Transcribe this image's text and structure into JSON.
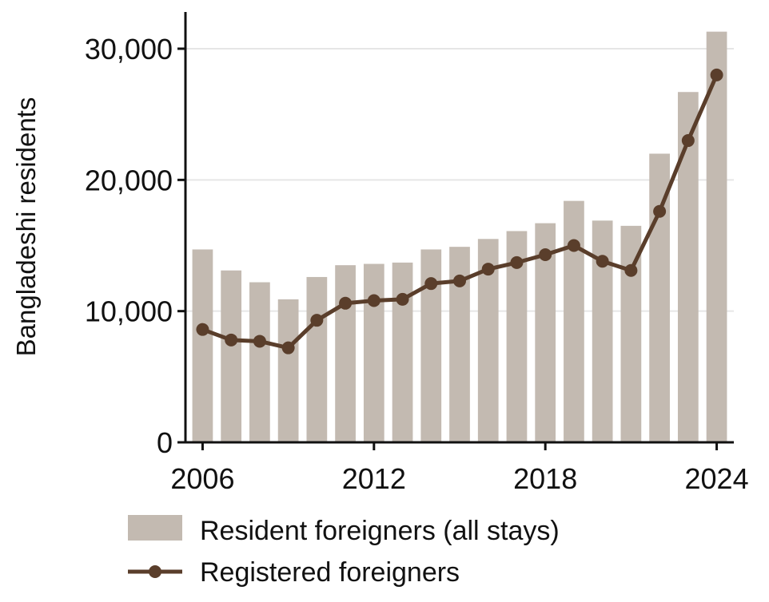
{
  "chart_data": {
    "type": "bar",
    "ylabel": "Bangladeshi residents",
    "xlabel": "",
    "ylim": [
      0,
      32800
    ],
    "xlim": [
      2005.4,
      2024.6
    ],
    "yticks": [
      0,
      10000,
      20000,
      30000
    ],
    "ytick_labels": [
      "0",
      "10,000",
      "20,000",
      "30,000"
    ],
    "xticks": [
      2006,
      2012,
      2018,
      2024
    ],
    "xtick_labels": [
      "2006",
      "2012",
      "2018",
      "2024"
    ],
    "grid": "horizontal",
    "legend_position": "bottom",
    "x": [
      2006,
      2007,
      2008,
      2009,
      2010,
      2011,
      2012,
      2013,
      2014,
      2015,
      2016,
      2017,
      2018,
      2019,
      2020,
      2021,
      2022,
      2023,
      2024
    ],
    "series": [
      {
        "name": "Resident foreigners (all stays)",
        "type": "bar",
        "color": "#c3bab1",
        "values": [
          14700,
          13100,
          12200,
          10900,
          12600,
          13500,
          13600,
          13700,
          14700,
          14900,
          15500,
          16100,
          16700,
          18400,
          16900,
          16500,
          22000,
          26700,
          31300
        ]
      },
      {
        "name": "Registered foreigners",
        "type": "line",
        "color": "#5a3e2b",
        "values": [
          8600,
          7800,
          7700,
          7200,
          9300,
          10600,
          10800,
          10900,
          12100,
          12300,
          13200,
          13700,
          14300,
          15000,
          13800,
          13100,
          17600,
          23000,
          28000
        ]
      }
    ]
  }
}
